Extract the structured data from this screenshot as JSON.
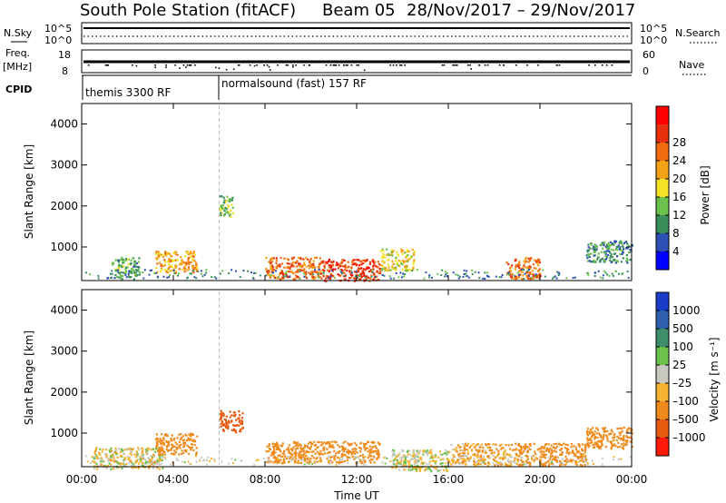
{
  "header": {
    "station": "South Pole Station (fitACF)",
    "beam": "Beam 05",
    "date_range": "28/Nov/2017 – 29/Nov/2017"
  },
  "strips": {
    "nsky_label": "N.Sky",
    "nsky_top": "10^5",
    "nsky_bottom": "10^0",
    "nsearch_label": "N.Search",
    "nsearch_top": "10^5",
    "nsearch_bottom": "10^0",
    "freq_label_1": "Freq.",
    "freq_label_2": "[MHz]",
    "freq_top": "18",
    "freq_bottom": "8",
    "nave_label": "Nave",
    "nave_top": "60",
    "nave_bottom": "0",
    "cpid_label": "CPID",
    "cpid_modes": [
      {
        "name": "themis 3300 RF",
        "start_hour": 0
      },
      {
        "name": "normalsound (fast) 157 RF",
        "start_hour": 6
      }
    ]
  },
  "chart_data": [
    {
      "type": "heatmap",
      "quantity": "Power",
      "ylabel": "Slant Range [km]",
      "ylim": [
        180,
        4500
      ],
      "y_ticks": [
        1000,
        2000,
        3000,
        4000
      ],
      "x_ticks": [
        "00:00",
        "04:00",
        "08:00",
        "12:00",
        "16:00",
        "20:00",
        "00:00"
      ],
      "xlim_hours": [
        0,
        24
      ],
      "colorbar": {
        "label": "Power [dB]",
        "ticks": [
          "4",
          "8",
          "12",
          "16",
          "20",
          "24",
          "28"
        ],
        "colors": [
          "#0000ff",
          "#2e4fb4",
          "#3a8e5c",
          "#6cc14c",
          "#f4e228",
          "#f6a218",
          "#f06a10",
          "#e8300c",
          "#ff0000"
        ]
      },
      "features": [
        {
          "t_start": 1.3,
          "t_end": 2.5,
          "range_km": 500,
          "value_db": 12
        },
        {
          "t_start": 3.2,
          "t_end": 5.0,
          "range_km": 650,
          "value_db": 22
        },
        {
          "t_start": 6.0,
          "t_end": 6.6,
          "range_km": 2000,
          "value_db": 14
        },
        {
          "t_start": 8.0,
          "t_end": 10.5,
          "range_km": 500,
          "value_db": 26
        },
        {
          "t_start": 10.5,
          "t_end": 13.0,
          "range_km": 450,
          "value_db": 30
        },
        {
          "t_start": 13.0,
          "t_end": 14.5,
          "range_km": 700,
          "value_db": 18
        },
        {
          "t_start": 18.5,
          "t_end": 20.0,
          "range_km": 500,
          "value_db": 26
        },
        {
          "t_start": 22.0,
          "t_end": 24.0,
          "range_km": 900,
          "value_db": 10
        }
      ]
    },
    {
      "type": "heatmap",
      "quantity": "Velocity",
      "ylabel": "Slant Range [km]",
      "ylim": [
        180,
        4500
      ],
      "y_ticks": [
        1000,
        2000,
        3000,
        4000
      ],
      "x_ticks": [
        "00:00",
        "04:00",
        "08:00",
        "12:00",
        "16:00",
        "20:00",
        "00:00"
      ],
      "xlabel": "Time UT",
      "xlim_hours": [
        0,
        24
      ],
      "colorbar": {
        "label": "Velocity [m s⁻¹]",
        "ticks": [
          "1000",
          "500",
          "100",
          "25",
          "–25",
          "–100",
          "–500",
          "–1000"
        ],
        "colors": [
          "#1a3cc8",
          "#2e5eae",
          "#3e8e6c",
          "#6cc04c",
          "#c8c8c0",
          "#f6b430",
          "#f08a1c",
          "#e85a10",
          "#ff1a0a"
        ]
      },
      "features": [
        {
          "t_start": 0.5,
          "t_end": 3.5,
          "range_km": 400,
          "value_ms": -25
        },
        {
          "t_start": 3.2,
          "t_end": 5.0,
          "range_km": 750,
          "value_ms": -300
        },
        {
          "t_start": 6.0,
          "t_end": 7.0,
          "range_km": 1300,
          "value_ms": -600
        },
        {
          "t_start": 8.0,
          "t_end": 13.0,
          "range_km": 550,
          "value_ms": -300
        },
        {
          "t_start": 13.5,
          "t_end": 16.0,
          "range_km": 350,
          "value_ms": 0
        },
        {
          "t_start": 16.0,
          "t_end": 19.0,
          "range_km": 500,
          "value_ms": -100
        },
        {
          "t_start": 19.0,
          "t_end": 22.0,
          "range_km": 500,
          "value_ms": -200
        },
        {
          "t_start": 22.0,
          "t_end": 24.0,
          "range_km": 900,
          "value_ms": -300
        }
      ]
    }
  ]
}
